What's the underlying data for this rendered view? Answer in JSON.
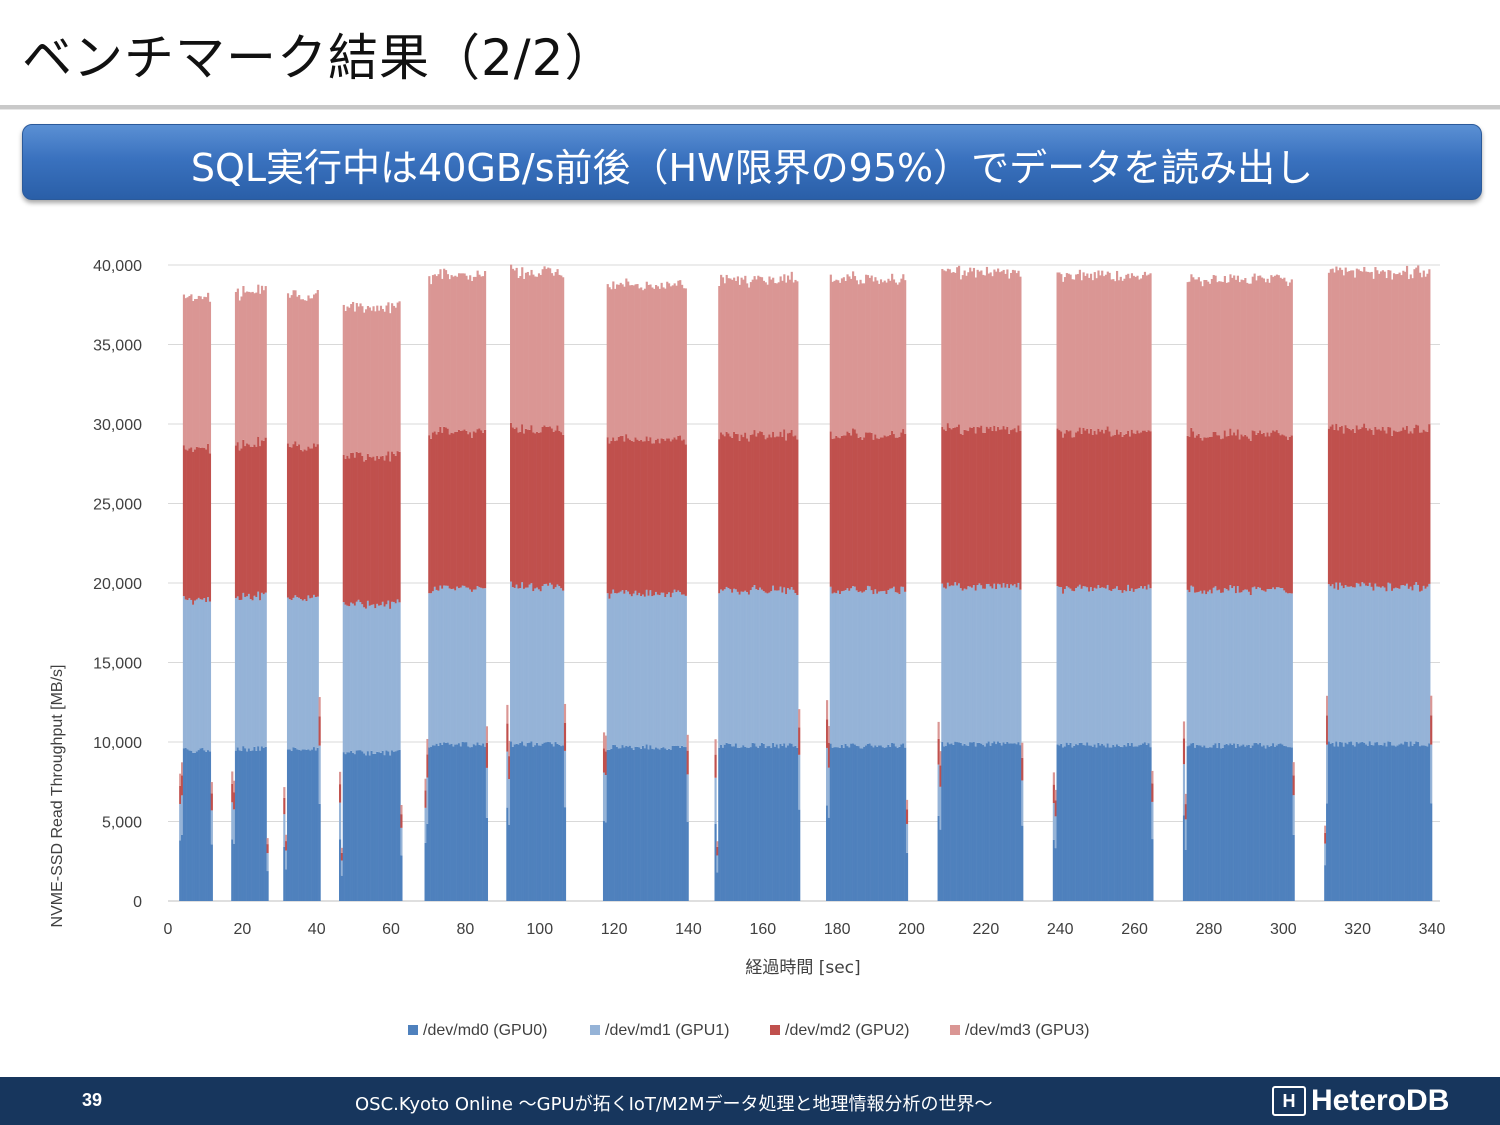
{
  "slide": {
    "title": "ベンチマーク結果（2/2）",
    "banner": "SQL実行中は40GB/s前後（HW限界の95%）でデータを読み出し"
  },
  "footer": {
    "page_number": "39",
    "text": "OSC.Kyoto Online 〜GPUが拓くIoT/M2Mデータ処理と地理情報分析の世界〜",
    "logo_text": "HeteroDB",
    "logo_mark": "H"
  },
  "colors": {
    "md0": "#4f81bd",
    "md1": "#95b3d7",
    "md2": "#c0504d",
    "md3": "#da9694",
    "banner": "#3a72bf",
    "footer": "#17365d"
  },
  "chart_data": {
    "type": "bar",
    "stacked": true,
    "xlabel": "経過時間 [sec]",
    "ylabel": "NVME-SSD Read Throughput [MB/s]",
    "xlim": [
      0,
      340
    ],
    "ylim": [
      0,
      40000
    ],
    "x_ticks": [
      "0",
      "20",
      "40",
      "60",
      "80",
      "100",
      "120",
      "140",
      "160",
      "180",
      "200",
      "220",
      "240",
      "260",
      "280",
      "300",
      "320",
      "340"
    ],
    "y_ticks": [
      "0",
      "5,000",
      "10,000",
      "15,000",
      "20,000",
      "25,000",
      "30,000",
      "35,000",
      "40,000"
    ],
    "grid": "horizontal",
    "legend_position": "bottom",
    "series": [
      {
        "name": "/dev/md0 (GPU0)",
        "color": "#4f81bd"
      },
      {
        "name": "/dev/md1 (GPU1)",
        "color": "#95b3d7"
      },
      {
        "name": "/dev/md2 (GPU2)",
        "color": "#c0504d"
      },
      {
        "name": "/dev/md3 (GPU3)",
        "color": "#da9694"
      }
    ],
    "runs_description_units": "seconds; per-disk throughput in MB/s",
    "runs": [
      {
        "start": 3,
        "end": 12,
        "per_disk": 9650
      },
      {
        "start": 17,
        "end": 27,
        "per_disk": 9750
      },
      {
        "start": 31,
        "end": 41,
        "per_disk": 9700
      },
      {
        "start": 46,
        "end": 63,
        "per_disk": 9500
      },
      {
        "start": 69,
        "end": 86,
        "per_disk": 10000
      },
      {
        "start": 91,
        "end": 107,
        "per_disk": 10050
      },
      {
        "start": 117,
        "end": 140,
        "per_disk": 9850
      },
      {
        "start": 147,
        "end": 170,
        "per_disk": 9950
      },
      {
        "start": 177,
        "end": 199,
        "per_disk": 9950
      },
      {
        "start": 207,
        "end": 230,
        "per_disk": 10050
      },
      {
        "start": 238,
        "end": 265,
        "per_disk": 10000
      },
      {
        "start": 273,
        "end": 303,
        "per_disk": 9950
      },
      {
        "start": 311,
        "end": 340,
        "per_disk": 10060
      }
    ]
  }
}
